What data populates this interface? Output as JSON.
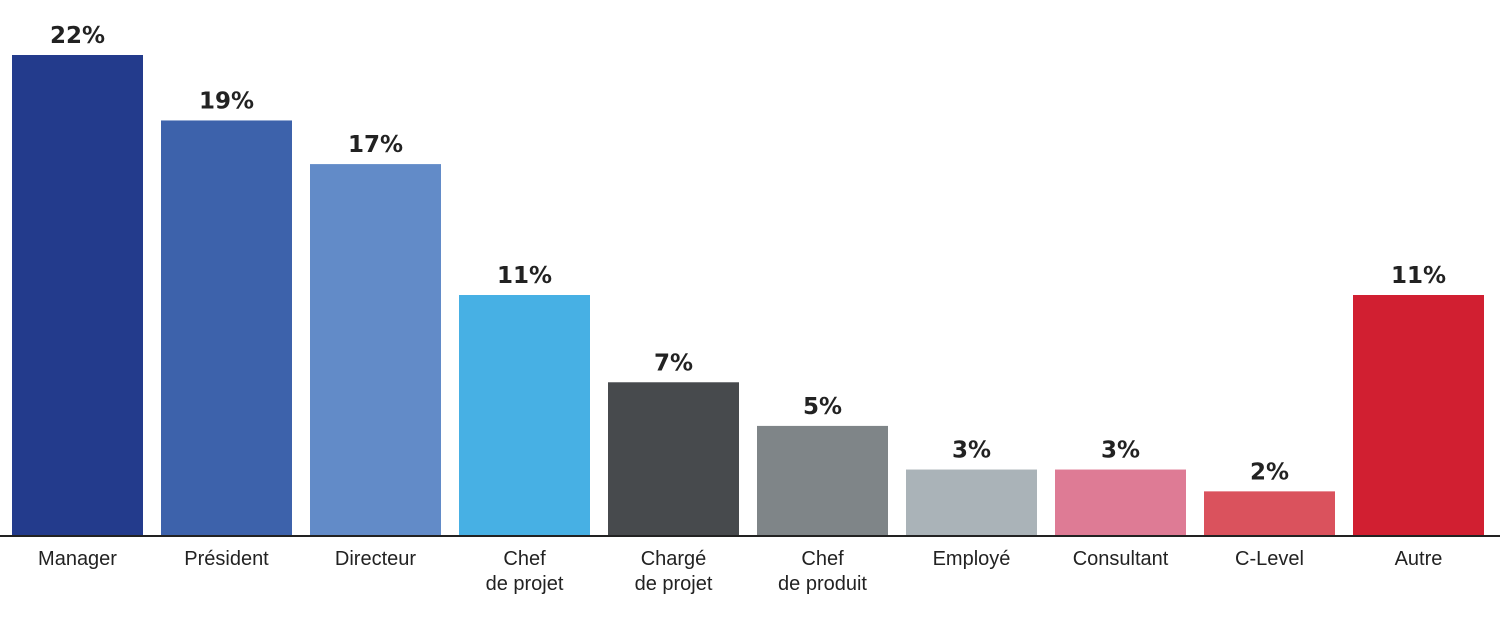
{
  "chart_data": {
    "type": "bar",
    "title": "",
    "xlabel": "",
    "ylabel": "",
    "ylim": [
      0,
      22
    ],
    "grid": false,
    "categories": [
      [
        "Manager"
      ],
      [
        "Président"
      ],
      [
        "Directeur"
      ],
      [
        "Chef",
        "de projet"
      ],
      [
        "Chargé",
        "de projet"
      ],
      [
        "Chef",
        "de produit"
      ],
      [
        "Employé"
      ],
      [
        "Consultant"
      ],
      [
        "C-Level"
      ],
      [
        "Autre"
      ]
    ],
    "values": [
      22,
      19,
      17,
      11,
      7,
      5,
      3,
      3,
      2,
      11
    ],
    "value_labels": [
      "22%",
      "19%",
      "17%",
      "11%",
      "7%",
      "5%",
      "3%",
      "3%",
      "2%",
      "11%"
    ],
    "colors": [
      "#233b8c",
      "#3d62ab",
      "#628bc8",
      "#47b0e4",
      "#474a4d",
      "#7f8588",
      "#aab3b8",
      "#de7b95",
      "#da525d",
      "#d11f31"
    ]
  }
}
